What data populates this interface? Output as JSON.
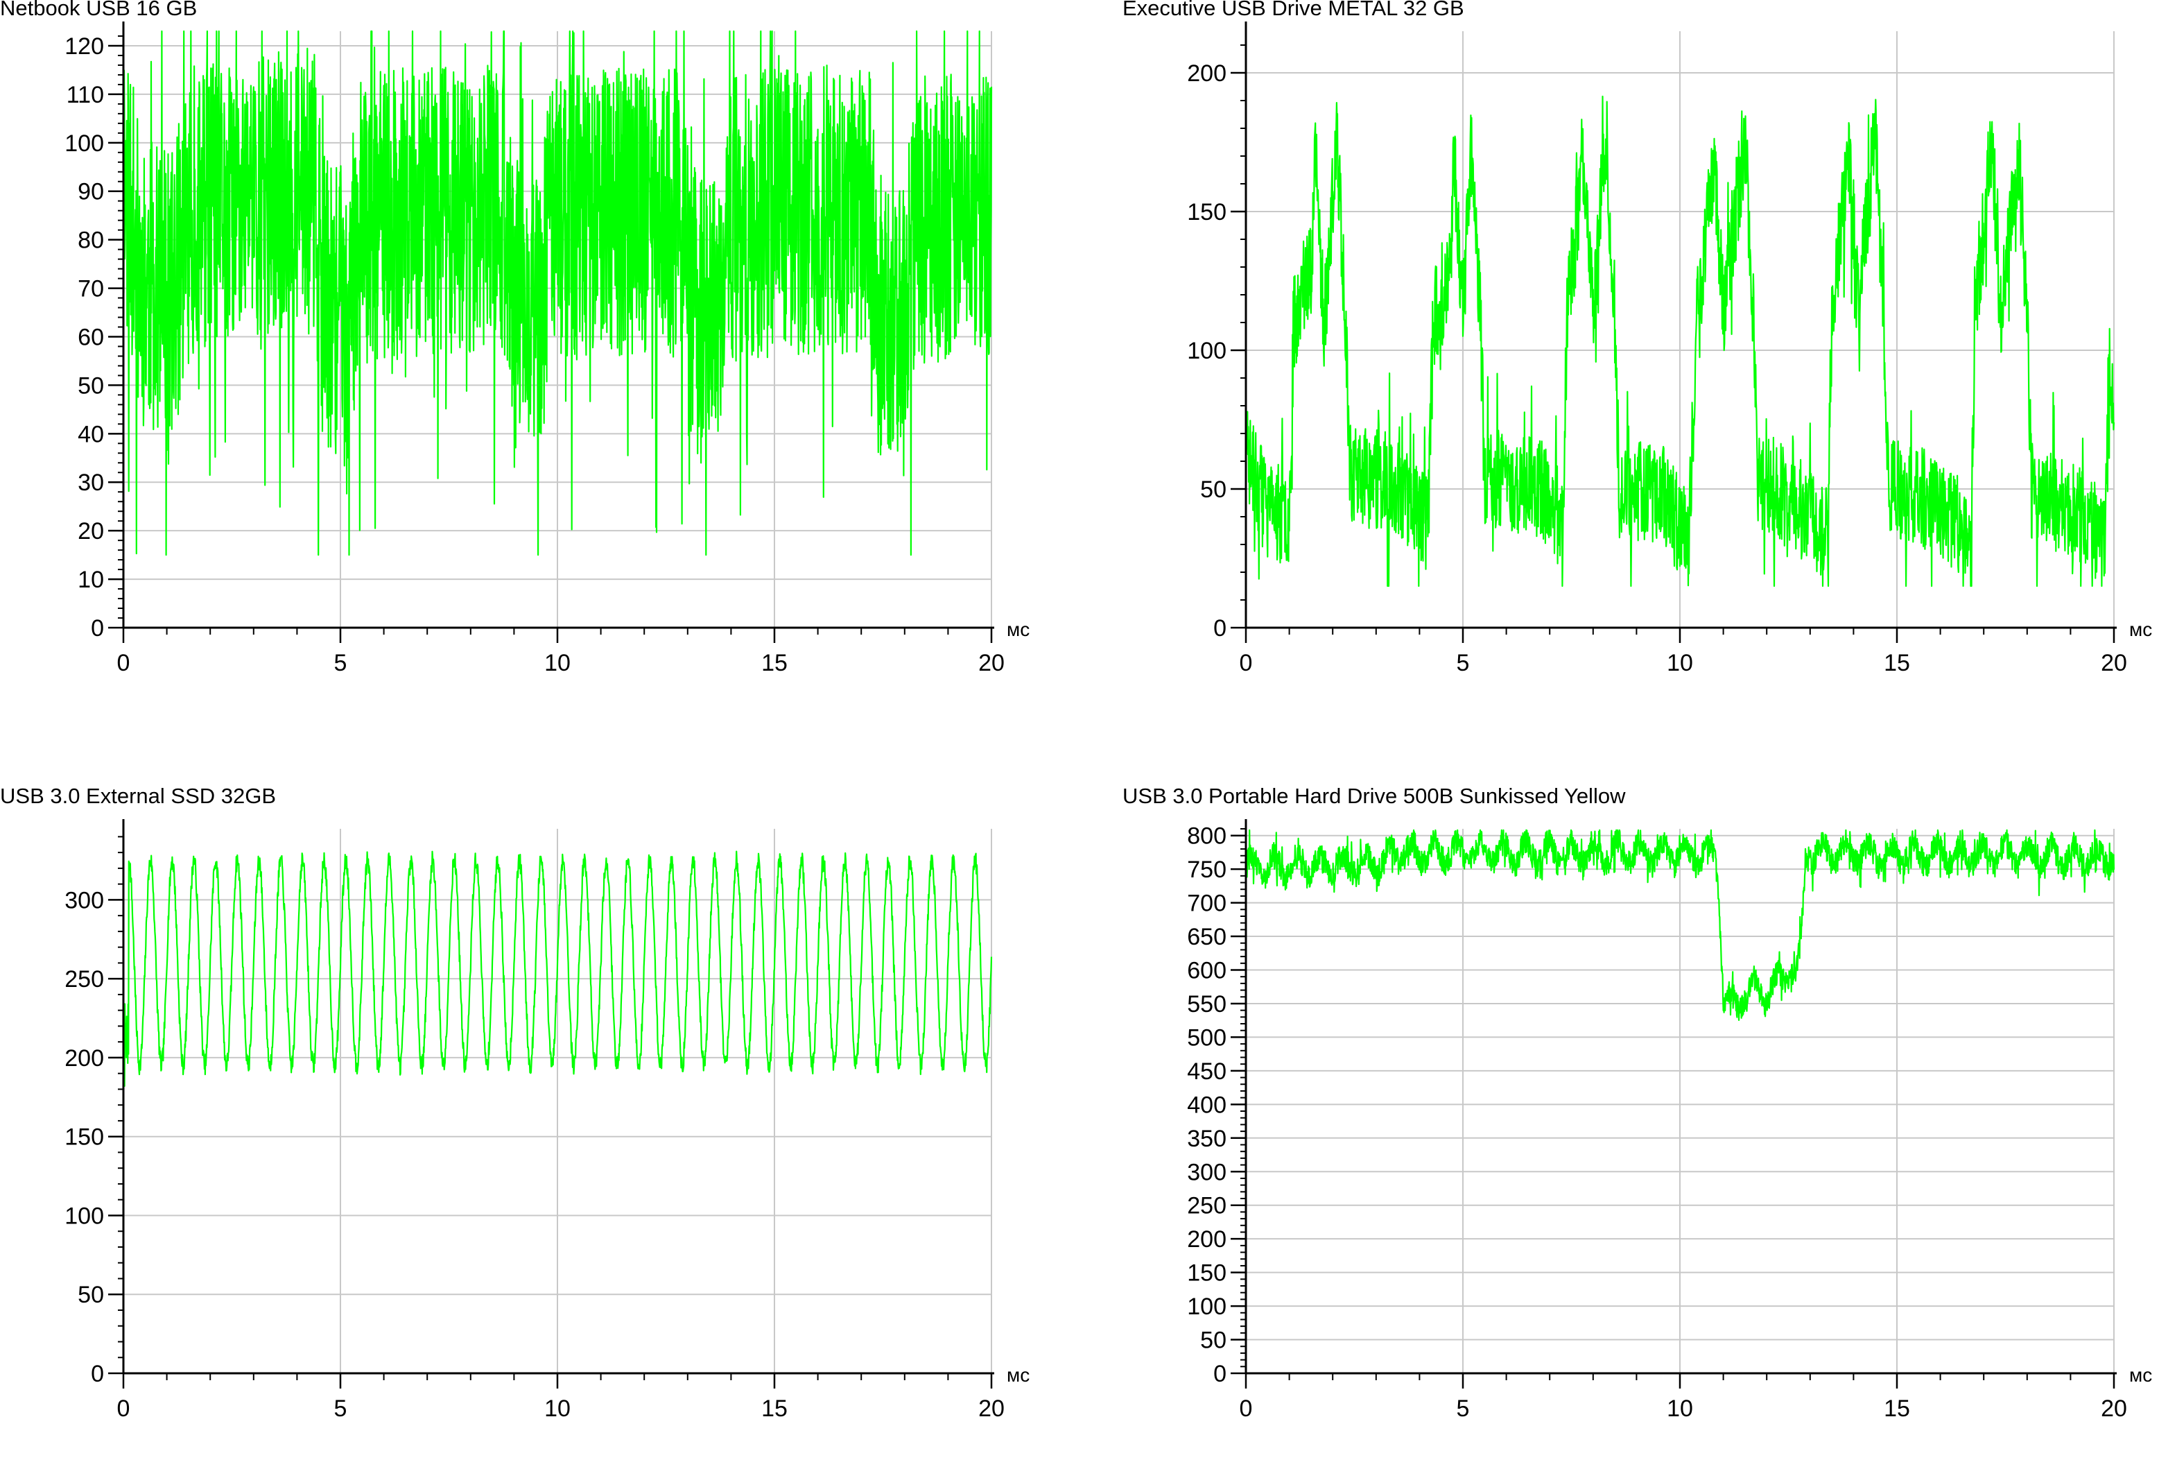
{
  "colors": {
    "series": "#00ff00",
    "grid": "#c8c8c8",
    "axis": "#000000",
    "background": "#ffffff"
  },
  "chart_data": [
    {
      "id": "netbook",
      "type": "line",
      "title": "Netbook USB 16 GB",
      "xlabel": "мс",
      "ylabel": "",
      "xlim": [
        0,
        20
      ],
      "ylim": [
        0,
        123
      ],
      "x_ticks": [
        0,
        5,
        10,
        15,
        20
      ],
      "y_ticks": [
        0,
        10,
        20,
        30,
        40,
        50,
        60,
        70,
        80,
        90,
        100,
        110,
        120
      ],
      "x_minor_step": 1,
      "y_minor_step": 2,
      "grid": true,
      "legend": "none",
      "series_profile": {
        "style": "noise",
        "baseline": [
          [
            0,
            95
          ],
          [
            0.4,
            72
          ],
          [
            1.1,
            68
          ],
          [
            1.6,
            86
          ],
          [
            2.8,
            88
          ],
          [
            4.4,
            90
          ],
          [
            4.6,
            68
          ],
          [
            5.2,
            62
          ],
          [
            5.4,
            84
          ],
          [
            6.8,
            86
          ],
          [
            8.8,
            86
          ],
          [
            9.0,
            64
          ],
          [
            9.6,
            62
          ],
          [
            9.8,
            84
          ],
          [
            11.2,
            86
          ],
          [
            13.0,
            85
          ],
          [
            13.2,
            62
          ],
          [
            13.8,
            64
          ],
          [
            14.0,
            84
          ],
          [
            15.2,
            86
          ],
          [
            17.2,
            86
          ],
          [
            17.4,
            64
          ],
          [
            18.0,
            64
          ],
          [
            18.3,
            84
          ],
          [
            20,
            86
          ]
        ],
        "noise": 30,
        "min": 15,
        "max": 123,
        "samples": 2600,
        "seed": 11
      }
    },
    {
      "id": "executive",
      "type": "line",
      "title": "Executive USB Drive METAL 32 GB",
      "xlabel": "мс",
      "ylabel": "",
      "xlim": [
        0,
        20
      ],
      "ylim": [
        0,
        215
      ],
      "x_ticks": [
        0,
        5,
        10,
        15,
        20
      ],
      "y_ticks": [
        0,
        50,
        100,
        150,
        200
      ],
      "x_minor_step": 1,
      "y_minor_step": 10,
      "grid": true,
      "legend": "none",
      "series_profile": {
        "style": "noise",
        "baseline": [
          [
            0,
            65
          ],
          [
            0.5,
            42
          ],
          [
            1.0,
            40
          ],
          [
            1.1,
            110
          ],
          [
            1.5,
            130
          ],
          [
            1.6,
            170
          ],
          [
            1.8,
            110
          ],
          [
            2.1,
            175
          ],
          [
            2.3,
            112
          ],
          [
            2.4,
            55
          ],
          [
            3.5,
            52
          ],
          [
            4.2,
            38
          ],
          [
            4.3,
            110
          ],
          [
            4.7,
            125
          ],
          [
            4.8,
            170
          ],
          [
            5.0,
            112
          ],
          [
            5.2,
            175
          ],
          [
            5.4,
            112
          ],
          [
            5.5,
            55
          ],
          [
            6.8,
            50
          ],
          [
            7.3,
            38
          ],
          [
            7.4,
            112
          ],
          [
            7.8,
            170
          ],
          [
            8.0,
            115
          ],
          [
            8.3,
            178
          ],
          [
            8.5,
            112
          ],
          [
            8.6,
            50
          ],
          [
            9.6,
            48
          ],
          [
            10.2,
            30
          ],
          [
            10.4,
            112
          ],
          [
            10.8,
            170
          ],
          [
            11.0,
            112
          ],
          [
            11.5,
            178
          ],
          [
            11.7,
            112
          ],
          [
            11.8,
            55
          ],
          [
            13.4,
            35
          ],
          [
            13.5,
            112
          ],
          [
            13.9,
            172
          ],
          [
            14.1,
            115
          ],
          [
            14.5,
            176
          ],
          [
            14.7,
            112
          ],
          [
            14.8,
            52
          ],
          [
            16.7,
            35
          ],
          [
            16.8,
            110
          ],
          [
            17.2,
            178
          ],
          [
            17.4,
            115
          ],
          [
            17.8,
            172
          ],
          [
            18.0,
            112
          ],
          [
            18.1,
            50
          ],
          [
            19.4,
            38
          ],
          [
            19.8,
            30
          ],
          [
            19.9,
            95
          ],
          [
            20,
            80
          ]
        ],
        "noise": 18,
        "min": 15,
        "max": 212,
        "samples": 2200,
        "seed": 23
      }
    },
    {
      "id": "ssd",
      "type": "line",
      "title": "USB 3.0 External SSD 32GB",
      "xlabel": "мс",
      "ylabel": "",
      "xlim": [
        0,
        20
      ],
      "ylim": [
        0,
        345
      ],
      "x_ticks": [
        0,
        5,
        10,
        15,
        20
      ],
      "y_ticks": [
        0,
        50,
        100,
        150,
        200,
        250,
        300
      ],
      "x_minor_step": 1,
      "y_minor_step": 10,
      "grid": true,
      "legend": "none",
      "series_profile": {
        "style": "oscillation",
        "mean": 260,
        "amplitude": 65,
        "cycles": 40,
        "start": [
          0,
          205
        ],
        "noise": 6,
        "min": 182,
        "max": 342,
        "samples": 2400,
        "seed": 7
      }
    },
    {
      "id": "hdd",
      "type": "line",
      "title": "USB 3.0 Portable Hard Drive 500B Sunkissed Yellow",
      "xlabel": "мс",
      "ylabel": "",
      "xlim": [
        0,
        20
      ],
      "ylim": [
        0,
        810
      ],
      "x_ticks": [
        0,
        5,
        10,
        15,
        20
      ],
      "y_ticks": [
        0,
        50,
        100,
        150,
        200,
        250,
        300,
        350,
        400,
        450,
        500,
        550,
        600,
        650,
        700,
        750,
        800
      ],
      "x_minor_step": 1,
      "y_minor_step": 10,
      "grid": true,
      "legend": "none",
      "series_profile": {
        "style": "noise",
        "baseline": [
          [
            0,
            752
          ],
          [
            3.2,
            760
          ],
          [
            3.3,
            775
          ],
          [
            10.8,
            772
          ],
          [
            10.9,
            720
          ],
          [
            11.0,
            560
          ],
          [
            11.3,
            545
          ],
          [
            11.6,
            575
          ],
          [
            12.0,
            565
          ],
          [
            12.5,
            600
          ],
          [
            12.7,
            595
          ],
          [
            12.8,
            640
          ],
          [
            12.9,
            775
          ],
          [
            20,
            768
          ]
        ],
        "noise": 20,
        "ripple": 16,
        "ripple_cycles": 38,
        "min": 505,
        "max": 808,
        "samples": 2400,
        "seed": 31
      }
    }
  ]
}
